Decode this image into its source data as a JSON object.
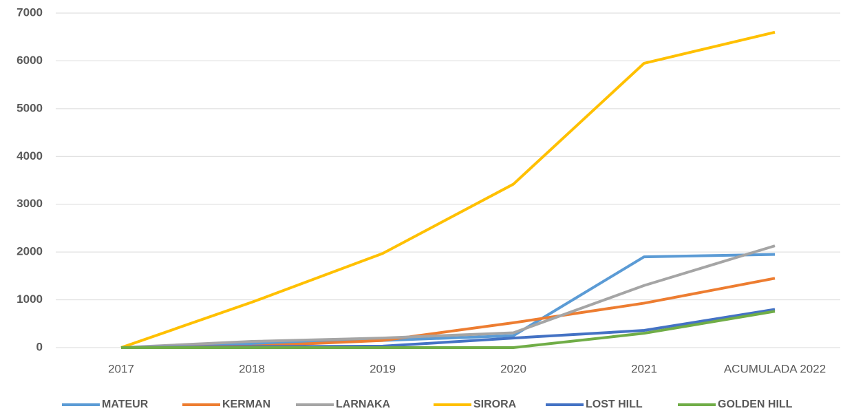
{
  "chart_data": {
    "type": "line",
    "categories": [
      "2017",
      "2018",
      "2019",
      "2020",
      "2021",
      "ACUMULADA 2022"
    ],
    "series": [
      {
        "name": "MATEUR",
        "color": "#5b9bd5",
        "values": [
          0,
          80,
          150,
          250,
          1900,
          1950
        ]
      },
      {
        "name": "KERMAN",
        "color": "#ed7d31",
        "values": [
          0,
          30,
          150,
          520,
          930,
          1450
        ]
      },
      {
        "name": "LARNAKA",
        "color": "#a5a5a5",
        "values": [
          0,
          130,
          200,
          310,
          1300,
          2130
        ]
      },
      {
        "name": "SIRORA",
        "color": "#ffc000",
        "values": [
          0,
          950,
          1970,
          3420,
          5950,
          6600
        ]
      },
      {
        "name": "LOST HILL",
        "color": "#4472c4",
        "values": [
          0,
          20,
          30,
          200,
          360,
          800
        ]
      },
      {
        "name": "GOLDEN HILL",
        "color": "#70ad47",
        "values": [
          0,
          0,
          0,
          0,
          300,
          760
        ]
      }
    ],
    "ylim": [
      0,
      7000
    ],
    "yticks": [
      0,
      1000,
      2000,
      3000,
      4000,
      5000,
      6000,
      7000
    ],
    "grid": true,
    "legend": "bottom"
  }
}
